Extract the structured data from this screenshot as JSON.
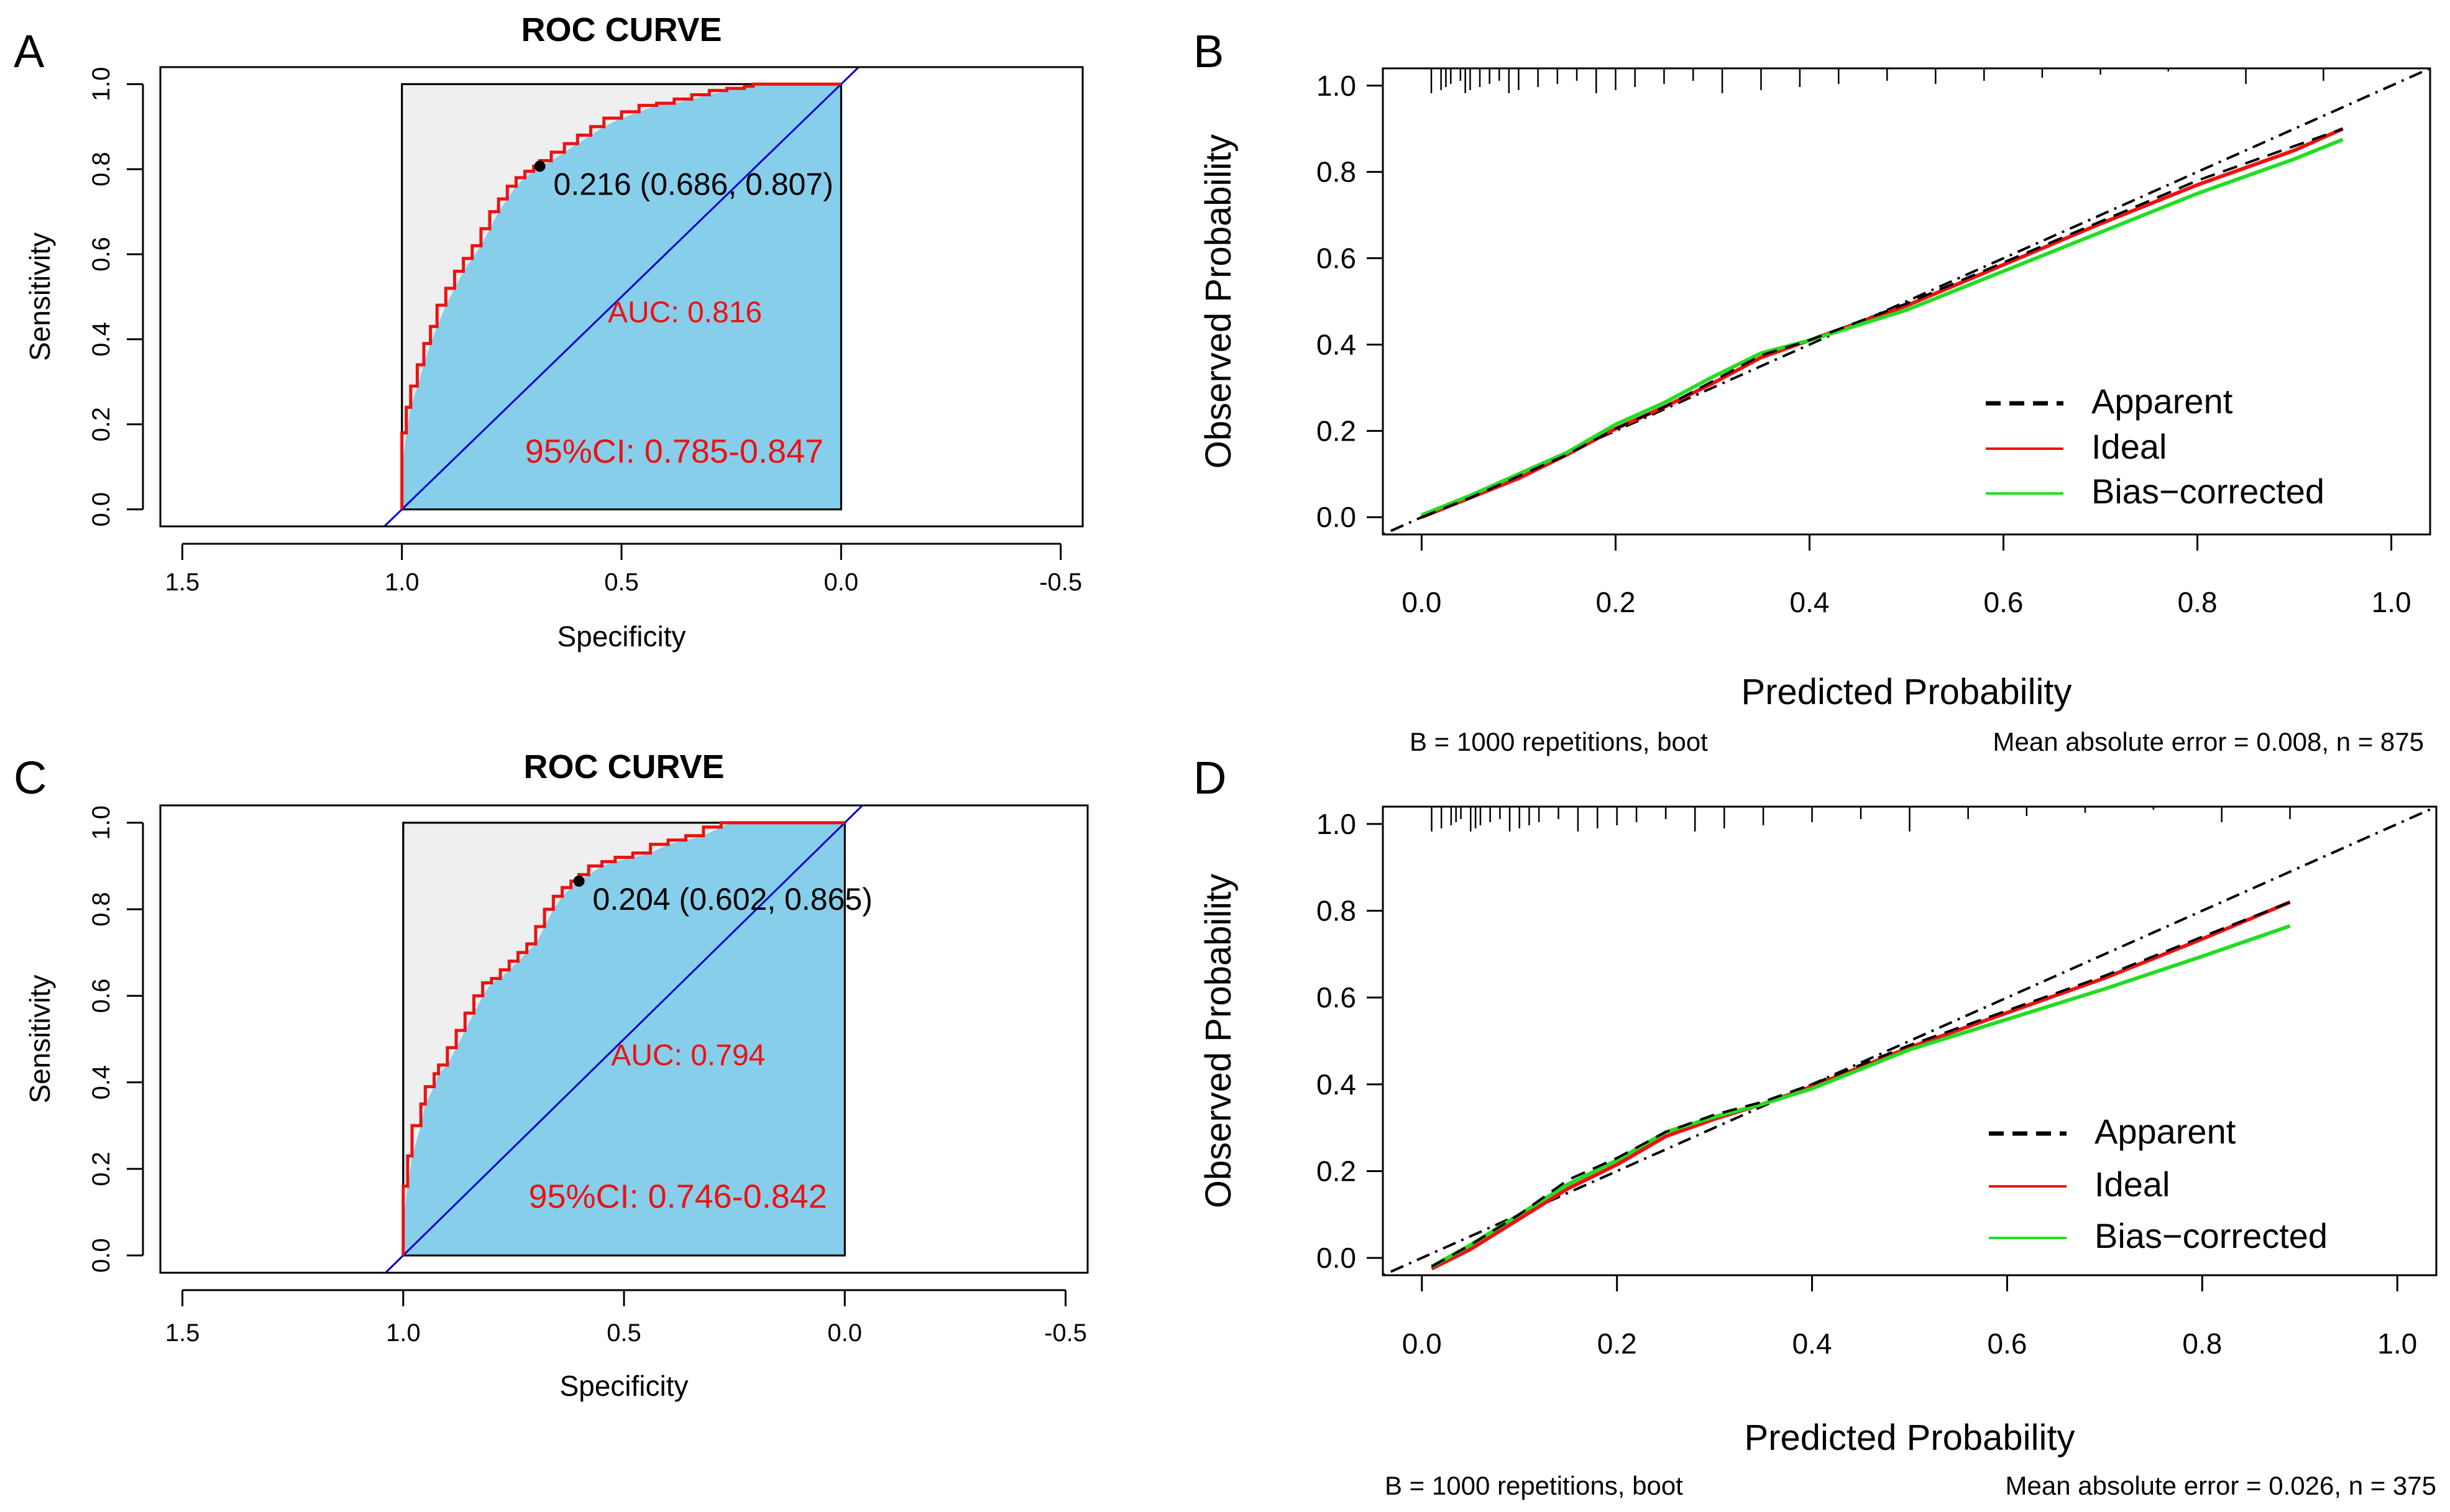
{
  "panels": [
    {
      "letter": "A"
    },
    {
      "letter": "B"
    },
    {
      "letter": "C"
    },
    {
      "letter": "D"
    }
  ],
  "chart_data": [
    {
      "type": "line",
      "subtype": "roc",
      "panel": "A",
      "title": "ROC CURVE",
      "xlabel": "Specificity",
      "ylabel": "Sensitivity",
      "x_reversed": true,
      "xlim": [
        1.55,
        -0.55
      ],
      "ylim": [
        -0.04,
        1.04
      ],
      "xticks": [
        1.5,
        1.0,
        0.5,
        0.0,
        -0.5
      ],
      "xtick_labels": [
        "1.5",
        "1.0",
        "0.5",
        "0.0",
        "-0.5"
      ],
      "yticks": [
        0.0,
        0.2,
        0.4,
        0.6,
        0.8,
        1.0
      ],
      "ytick_labels": [
        "0.0",
        "0.2",
        "0.4",
        "0.6",
        "0.8",
        "1.0"
      ],
      "series": [
        {
          "name": "ROC",
          "color": "#ee1111",
          "specificity": [
            1.0,
            1.0,
            0.99,
            0.98,
            0.965,
            0.95,
            0.935,
            0.92,
            0.9,
            0.88,
            0.86,
            0.84,
            0.82,
            0.8,
            0.78,
            0.76,
            0.74,
            0.72,
            0.7,
            0.686,
            0.66,
            0.63,
            0.6,
            0.57,
            0.54,
            0.5,
            0.46,
            0.42,
            0.38,
            0.34,
            0.3,
            0.26,
            0.22,
            0.2,
            0.18,
            0.1,
            0.0
          ],
          "sensitivity": [
            0.0,
            0.1,
            0.18,
            0.24,
            0.29,
            0.34,
            0.39,
            0.43,
            0.48,
            0.52,
            0.56,
            0.59,
            0.62,
            0.66,
            0.7,
            0.73,
            0.76,
            0.78,
            0.795,
            0.807,
            0.82,
            0.84,
            0.86,
            0.88,
            0.9,
            0.92,
            0.935,
            0.95,
            0.955,
            0.965,
            0.975,
            0.985,
            0.99,
            0.995,
            1.0,
            1.0,
            1.0
          ]
        }
      ],
      "best_point": {
        "specificity": 0.686,
        "sensitivity": 0.807,
        "label": "0.216 (0.686, 0.807)"
      },
      "auc_label": "AUC: 0.816",
      "ci_label": "95%CI: 0.785-0.847",
      "colors": {
        "fill": "#87ceeb",
        "background": "#efefef",
        "curve": "#ee1111",
        "diagonal": "#0000cc"
      }
    },
    {
      "type": "line",
      "subtype": "calibration",
      "panel": "B",
      "xlabel": "Predicted Probability",
      "ylabel": "Observed Probability",
      "xlim": [
        -0.04,
        1.04
      ],
      "ylim": [
        -0.04,
        1.04
      ],
      "xticks": [
        0.0,
        0.2,
        0.4,
        0.6,
        0.8,
        1.0
      ],
      "xtick_labels": [
        "0.0",
        "0.2",
        "0.4",
        "0.6",
        "0.8",
        "1.0"
      ],
      "yticks": [
        0.0,
        0.2,
        0.4,
        0.6,
        0.8,
        1.0
      ],
      "ytick_labels": [
        "0.0",
        "0.2",
        "0.4",
        "0.6",
        "0.8",
        "1.0"
      ],
      "series": [
        {
          "name": "Apparent",
          "color": "#000000",
          "style": "dashed",
          "x": [
            0.0,
            0.05,
            0.1,
            0.15,
            0.2,
            0.25,
            0.3,
            0.35,
            0.4,
            0.5,
            0.6,
            0.7,
            0.8,
            0.9,
            0.95
          ],
          "y": [
            0.0,
            0.045,
            0.095,
            0.145,
            0.205,
            0.255,
            0.315,
            0.375,
            0.41,
            0.495,
            0.59,
            0.685,
            0.78,
            0.86,
            0.9
          ]
        },
        {
          "name": "Ideal",
          "color": "#ee1111",
          "style": "solid",
          "x": [
            0.0,
            0.05,
            0.1,
            0.15,
            0.2,
            0.25,
            0.3,
            0.35,
            0.4,
            0.5,
            0.6,
            0.7,
            0.8,
            0.9,
            0.95
          ],
          "y": [
            0.0,
            0.045,
            0.09,
            0.145,
            0.205,
            0.255,
            0.31,
            0.37,
            0.41,
            0.49,
            0.585,
            0.68,
            0.77,
            0.85,
            0.9
          ]
        },
        {
          "name": "Bias-corrected",
          "color": "#22dd22",
          "style": "solid",
          "x": [
            0.0,
            0.05,
            0.1,
            0.15,
            0.2,
            0.25,
            0.3,
            0.35,
            0.4,
            0.5,
            0.6,
            0.7,
            0.8,
            0.9,
            0.95
          ],
          "y": [
            0.005,
            0.05,
            0.1,
            0.15,
            0.215,
            0.265,
            0.325,
            0.38,
            0.41,
            0.48,
            0.57,
            0.66,
            0.75,
            0.83,
            0.875
          ]
        }
      ],
      "reference_line": {
        "style": "dotdash",
        "color": "#000000"
      },
      "rug": [
        0.01,
        0.02,
        0.025,
        0.03,
        0.04,
        0.045,
        0.05,
        0.06,
        0.07,
        0.08,
        0.09,
        0.1,
        0.12,
        0.14,
        0.16,
        0.18,
        0.2,
        0.22,
        0.25,
        0.28,
        0.31,
        0.35,
        0.39,
        0.43,
        0.48,
        0.53,
        0.58,
        0.64,
        0.7,
        0.77,
        0.85,
        0.93
      ],
      "legend": [
        "Apparent",
        "Ideal",
        "Bias−corrected"
      ],
      "footer_left": "B = 1000 repetitions, boot",
      "footer_right": "Mean absolute error = 0.008, n = 875"
    },
    {
      "type": "line",
      "subtype": "roc",
      "panel": "C",
      "title": "ROC CURVE",
      "xlabel": "Specificity",
      "ylabel": "Sensitivity",
      "x_reversed": true,
      "xlim": [
        1.55,
        -0.55
      ],
      "ylim": [
        -0.04,
        1.04
      ],
      "xticks": [
        1.5,
        1.0,
        0.5,
        0.0,
        -0.5
      ],
      "xtick_labels": [
        "1.5",
        "1.0",
        "0.5",
        "0.0",
        "-0.5"
      ],
      "yticks": [
        0.0,
        0.2,
        0.4,
        0.6,
        0.8,
        1.0
      ],
      "ytick_labels": [
        "0.0",
        "0.2",
        "0.4",
        "0.6",
        "0.8",
        "1.0"
      ],
      "series": [
        {
          "name": "ROC",
          "color": "#ee1111",
          "specificity": [
            1.0,
            1.0,
            0.99,
            0.98,
            0.96,
            0.95,
            0.93,
            0.92,
            0.9,
            0.88,
            0.86,
            0.84,
            0.82,
            0.8,
            0.78,
            0.76,
            0.74,
            0.72,
            0.7,
            0.68,
            0.66,
            0.64,
            0.62,
            0.602,
            0.58,
            0.55,
            0.52,
            0.48,
            0.44,
            0.4,
            0.36,
            0.32,
            0.28,
            0.26,
            0.0
          ],
          "sensitivity": [
            0.0,
            0.08,
            0.16,
            0.23,
            0.3,
            0.35,
            0.39,
            0.42,
            0.44,
            0.48,
            0.52,
            0.56,
            0.6,
            0.63,
            0.64,
            0.66,
            0.68,
            0.7,
            0.72,
            0.76,
            0.8,
            0.83,
            0.85,
            0.865,
            0.88,
            0.9,
            0.91,
            0.92,
            0.93,
            0.95,
            0.96,
            0.97,
            0.99,
            1.0,
            1.0
          ]
        }
      ],
      "best_point": {
        "specificity": 0.602,
        "sensitivity": 0.865,
        "label": "0.204 (0.602, 0.865)"
      },
      "auc_label": "AUC: 0.794",
      "ci_label": "95%CI: 0.746-0.842",
      "colors": {
        "fill": "#87ceeb",
        "background": "#efefef",
        "curve": "#ee1111",
        "diagonal": "#0000cc"
      }
    },
    {
      "type": "line",
      "subtype": "calibration",
      "panel": "D",
      "xlabel": "Predicted Probability",
      "ylabel": "Observed Probability",
      "xlim": [
        -0.04,
        1.04
      ],
      "ylim": [
        -0.04,
        1.04
      ],
      "xticks": [
        0.0,
        0.2,
        0.4,
        0.6,
        0.8,
        1.0
      ],
      "xtick_labels": [
        "0.0",
        "0.2",
        "0.4",
        "0.6",
        "0.8",
        "1.0"
      ],
      "yticks": [
        0.0,
        0.2,
        0.4,
        0.6,
        0.8,
        1.0
      ],
      "ytick_labels": [
        "0.0",
        "0.2",
        "0.4",
        "0.6",
        "0.8",
        "1.0"
      ],
      "series": [
        {
          "name": "Apparent",
          "color": "#000000",
          "style": "dashed",
          "x": [
            0.01,
            0.05,
            0.1,
            0.15,
            0.2,
            0.25,
            0.3,
            0.35,
            0.4,
            0.5,
            0.6,
            0.7,
            0.8,
            0.89
          ],
          "y": [
            -0.02,
            0.03,
            0.1,
            0.18,
            0.23,
            0.29,
            0.33,
            0.36,
            0.4,
            0.49,
            0.57,
            0.65,
            0.74,
            0.82
          ]
        },
        {
          "name": "Ideal",
          "color": "#ee1111",
          "style": "solid",
          "x": [
            0.01,
            0.05,
            0.1,
            0.15,
            0.2,
            0.25,
            0.3,
            0.35,
            0.4,
            0.5,
            0.6,
            0.7,
            0.8,
            0.89
          ],
          "y": [
            -0.025,
            0.02,
            0.09,
            0.16,
            0.215,
            0.28,
            0.32,
            0.355,
            0.395,
            0.485,
            0.565,
            0.645,
            0.735,
            0.82
          ]
        },
        {
          "name": "Bias-corrected",
          "color": "#22dd22",
          "style": "solid",
          "x": [
            0.01,
            0.05,
            0.1,
            0.15,
            0.2,
            0.25,
            0.3,
            0.35,
            0.4,
            0.5,
            0.6,
            0.7,
            0.8,
            0.89
          ],
          "y": [
            -0.02,
            0.03,
            0.1,
            0.17,
            0.225,
            0.29,
            0.325,
            0.355,
            0.39,
            0.48,
            0.55,
            0.62,
            0.695,
            0.765
          ]
        }
      ],
      "reference_line": {
        "style": "dotdash",
        "color": "#000000"
      },
      "rug": [
        0.01,
        0.02,
        0.03,
        0.035,
        0.04,
        0.05,
        0.055,
        0.06,
        0.07,
        0.08,
        0.09,
        0.1,
        0.11,
        0.12,
        0.14,
        0.16,
        0.18,
        0.2,
        0.22,
        0.25,
        0.28,
        0.31,
        0.35,
        0.4,
        0.45,
        0.5,
        0.56,
        0.62,
        0.68,
        0.75,
        0.82,
        0.89
      ],
      "legend": [
        "Apparent",
        "Ideal",
        "Bias−corrected"
      ],
      "footer_left": "B = 1000 repetitions, boot",
      "footer_right": "Mean absolute error = 0.026, n = 375"
    }
  ]
}
